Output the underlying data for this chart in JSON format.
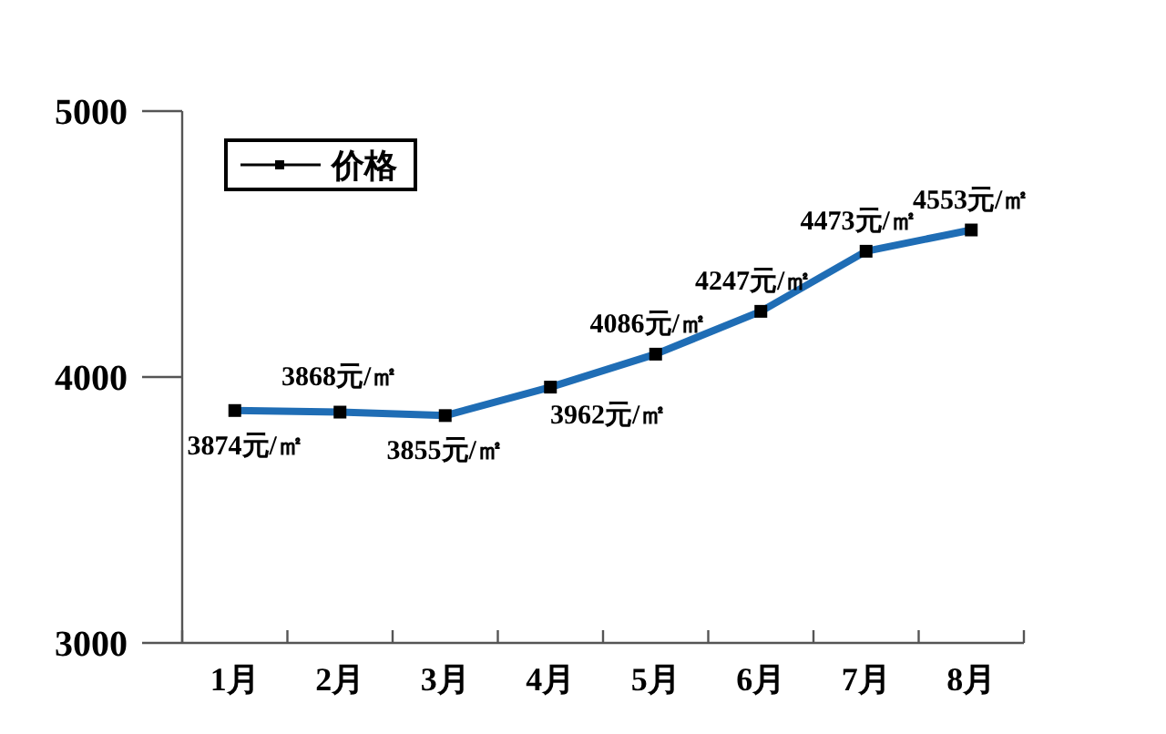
{
  "chart_data": {
    "type": "line",
    "categories": [
      "1月",
      "2月",
      "3月",
      "4月",
      "5月",
      "6月",
      "7月",
      "8月"
    ],
    "series": [
      {
        "name": "价格",
        "color": "#1f6db5",
        "values": [
          3874,
          3868,
          3855,
          3962,
          4086,
          4247,
          4473,
          4553
        ],
        "value_labels": [
          "3874元/㎡",
          "3868元/㎡",
          "3855元/㎡",
          "3962元/㎡",
          "4086元/㎡",
          "4247元/㎡",
          "4473元/㎡",
          "4553元/㎡"
        ]
      }
    ],
    "ylim": [
      3000,
      5000
    ],
    "yticks": [
      3000,
      4000,
      5000
    ],
    "grid": false,
    "legend": "top left",
    "marker": "square",
    "line_style": "solid"
  }
}
